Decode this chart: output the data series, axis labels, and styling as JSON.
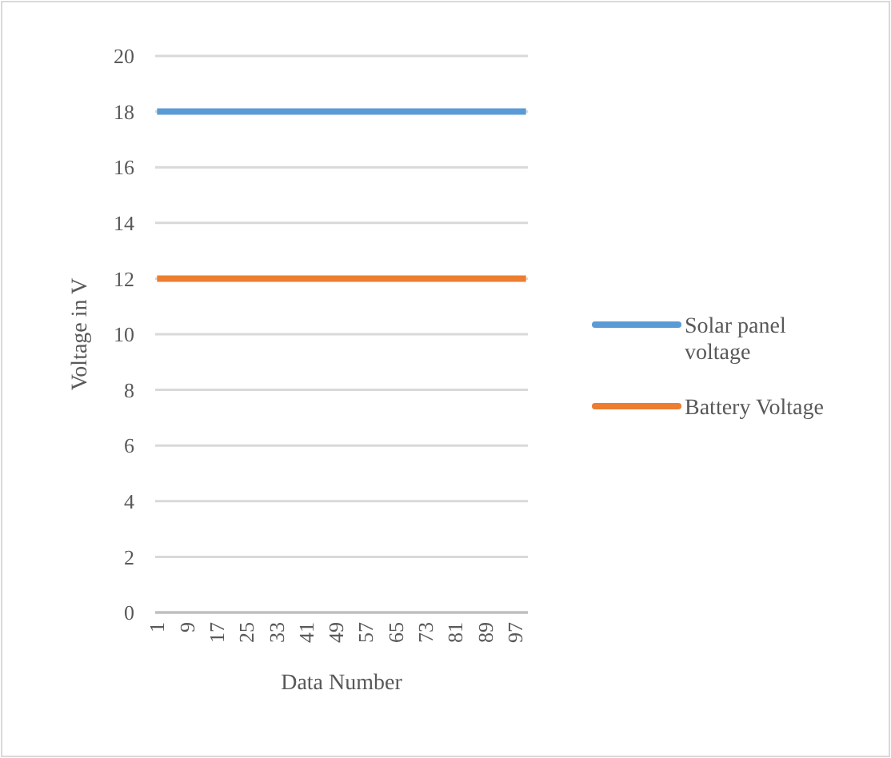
{
  "chart_data": {
    "type": "line",
    "xlabel": "Data Number",
    "ylabel": "Voltage in V",
    "categories": [
      "1",
      null,
      null,
      null,
      null,
      null,
      null,
      null,
      "9",
      null,
      null,
      null,
      null,
      null,
      null,
      null,
      "17",
      null,
      null,
      null,
      null,
      null,
      null,
      null,
      "25",
      null,
      null,
      null,
      null,
      null,
      null,
      null,
      "33",
      null,
      null,
      null,
      null,
      null,
      null,
      null,
      "41",
      null,
      null,
      null,
      null,
      null,
      null,
      null,
      "49",
      null,
      null,
      null,
      null,
      null,
      null,
      null,
      "57",
      null,
      null,
      null,
      null,
      null,
      null,
      null,
      "65",
      null,
      null,
      null,
      null,
      null,
      null,
      null,
      "73",
      null,
      null,
      null,
      null,
      null,
      null,
      null,
      "81",
      null,
      null,
      null,
      null,
      null,
      null,
      null,
      "89",
      null,
      null,
      null,
      null,
      null,
      null,
      null,
      "97",
      null,
      null,
      null
    ],
    "ylim": [
      0,
      20
    ],
    "yticks": [
      0,
      2,
      4,
      6,
      8,
      10,
      12,
      14,
      16,
      18,
      20
    ],
    "grid": "y",
    "legend": "right",
    "series": [
      {
        "name": "Solar panel voltage",
        "color": "#5b9bd5",
        "values": [
          18,
          18,
          18,
          18,
          18,
          18,
          18,
          18,
          18,
          18,
          18,
          18,
          18,
          18,
          18,
          18,
          18,
          18,
          18,
          18,
          18,
          18,
          18,
          18,
          18,
          18,
          18,
          18,
          18,
          18,
          18,
          18,
          18,
          18,
          18,
          18,
          18,
          18,
          18,
          18,
          18,
          18,
          18,
          18,
          18,
          18,
          18,
          18,
          18,
          18,
          18,
          18,
          18,
          18,
          18,
          18,
          18,
          18,
          18,
          18,
          18,
          18,
          18,
          18,
          18,
          18,
          18,
          18,
          18,
          18,
          18,
          18,
          18,
          18,
          18,
          18,
          18,
          18,
          18,
          18,
          18,
          18,
          18,
          18,
          18,
          18,
          18,
          18,
          18,
          18,
          18,
          18,
          18,
          18,
          18,
          18,
          18,
          18,
          18,
          18
        ]
      },
      {
        "name": "Battery Voltage",
        "color": "#ed7d31",
        "values": [
          12,
          12,
          12,
          12,
          12,
          12,
          12,
          12,
          12,
          12,
          12,
          12,
          12,
          12,
          12,
          12,
          12,
          12,
          12,
          12,
          12,
          12,
          12,
          12,
          12,
          12,
          12,
          12,
          12,
          12,
          12,
          12,
          12,
          12,
          12,
          12,
          12,
          12,
          12,
          12,
          12,
          12,
          12,
          12,
          12,
          12,
          12,
          12,
          12,
          12,
          12,
          12,
          12,
          12,
          12,
          12,
          12,
          12,
          12,
          12,
          12,
          12,
          12,
          12,
          12,
          12,
          12,
          12,
          12,
          12,
          12,
          12,
          12,
          12,
          12,
          12,
          12,
          12,
          12,
          12,
          12,
          12,
          12,
          12,
          12,
          12,
          12,
          12,
          12,
          12,
          12,
          12,
          12,
          12,
          12,
          12,
          12,
          12,
          12,
          12
        ]
      }
    ]
  }
}
